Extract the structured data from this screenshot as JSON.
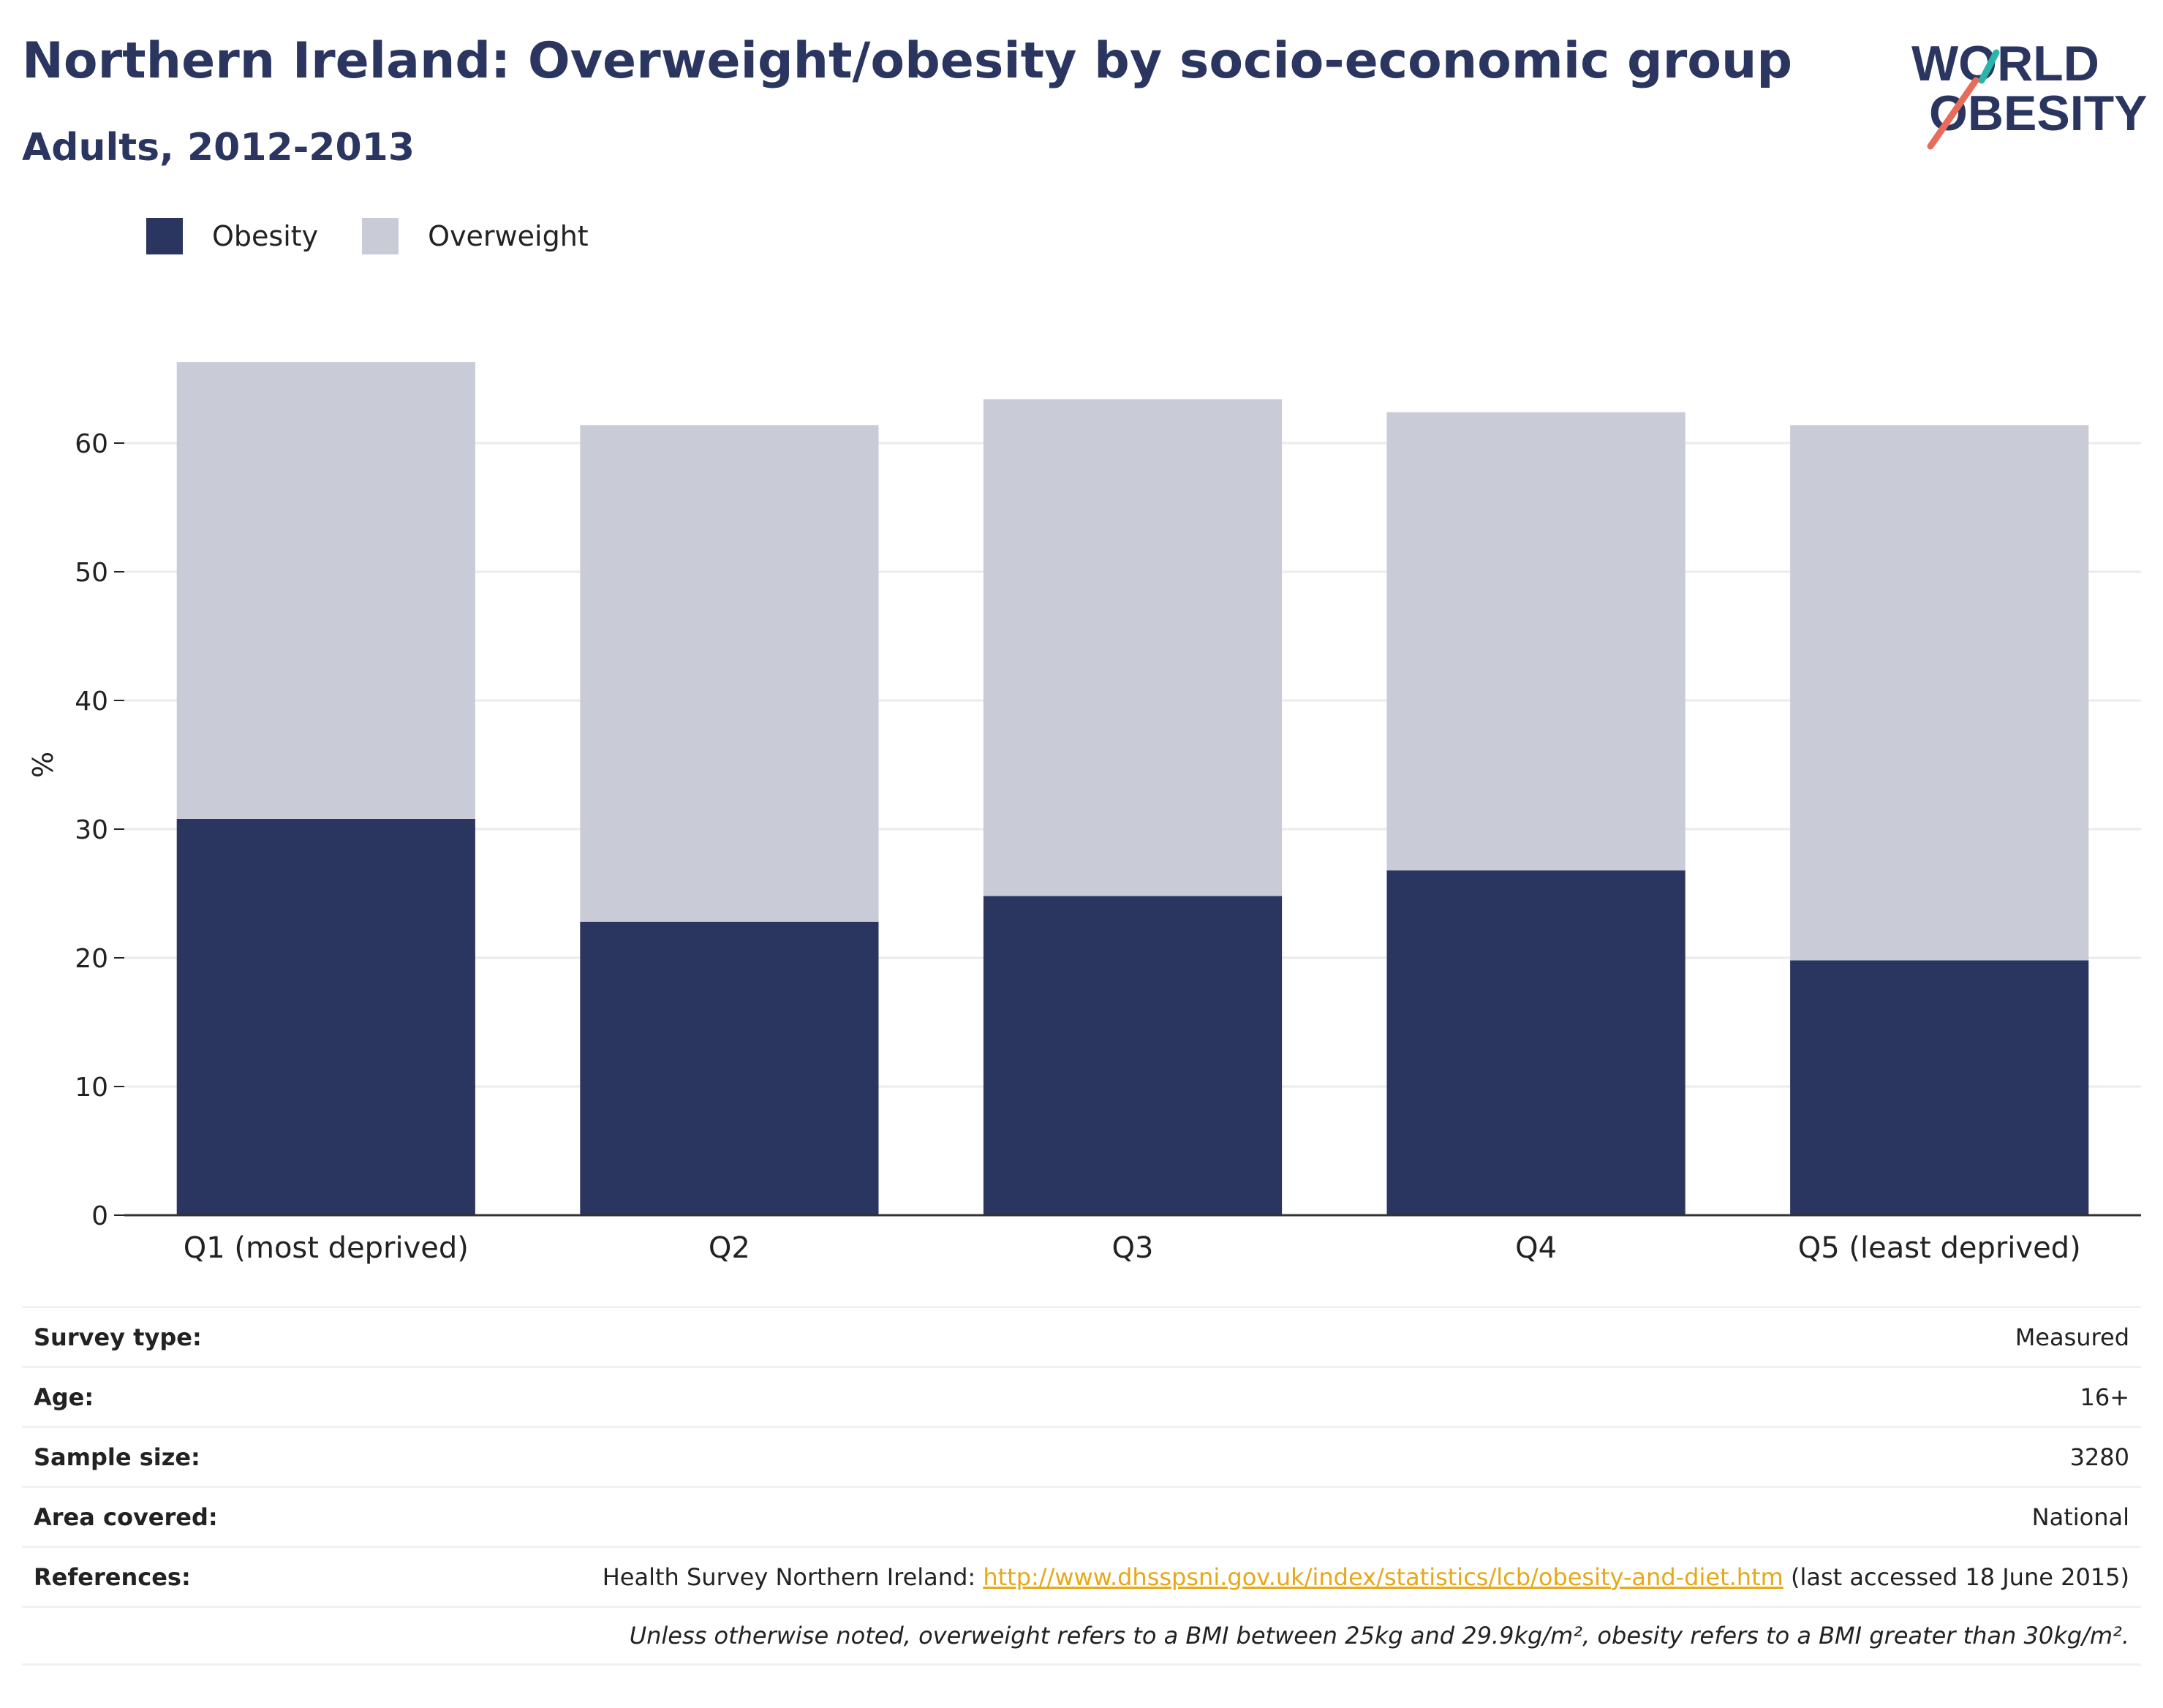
{
  "header": {
    "title": "Northern Ireland: Overweight/obesity by socio-economic group",
    "subtitle": "Adults, 2012-2013"
  },
  "logo": {
    "line1": "WORLD",
    "line2": "OBESITY",
    "accent_teal": "#2bb5a9",
    "accent_coral": "#e86c5a"
  },
  "legend": {
    "items": [
      {
        "label": "Obesity",
        "color": "#2a3560"
      },
      {
        "label": "Overweight",
        "color": "#c9cbd7"
      }
    ]
  },
  "chart_data": {
    "type": "bar",
    "stacked": true,
    "categories": [
      "Q1 (most deprived)",
      "Q2",
      "Q3",
      "Q4",
      "Q5 (least deprived)"
    ],
    "series": [
      {
        "name": "Obesity",
        "color": "#2a3560",
        "values": [
          30.8,
          22.8,
          24.8,
          26.8,
          19.8
        ]
      },
      {
        "name": "Overweight",
        "color": "#c9cbd7",
        "values": [
          35.5,
          38.6,
          38.6,
          35.6,
          41.6
        ]
      }
    ],
    "ylabel": "%",
    "yticks": [
      0,
      10,
      20,
      30,
      40,
      50,
      60
    ],
    "ylim": [
      0,
      70
    ],
    "grid": true
  },
  "meta": {
    "survey_type_label": "Survey type:",
    "survey_type_value": "Measured",
    "age_label": "Age:",
    "age_value": "16+",
    "sample_label": "Sample size:",
    "sample_value": "3280",
    "area_label": "Area covered:",
    "area_value": "National",
    "references_label": "References:",
    "references_prefix": "Health Survey Northern Ireland: ",
    "references_link": "http://www.dhsspsni.gov.uk/index/statistics/lcb/obesity-and-diet.htm",
    "references_suffix": " (last accessed 18 June 2015)",
    "note": "Unless otherwise noted, overweight refers to a BMI between 25kg and 29.9kg/m², obesity refers to a BMI greater than 30kg/m²."
  }
}
